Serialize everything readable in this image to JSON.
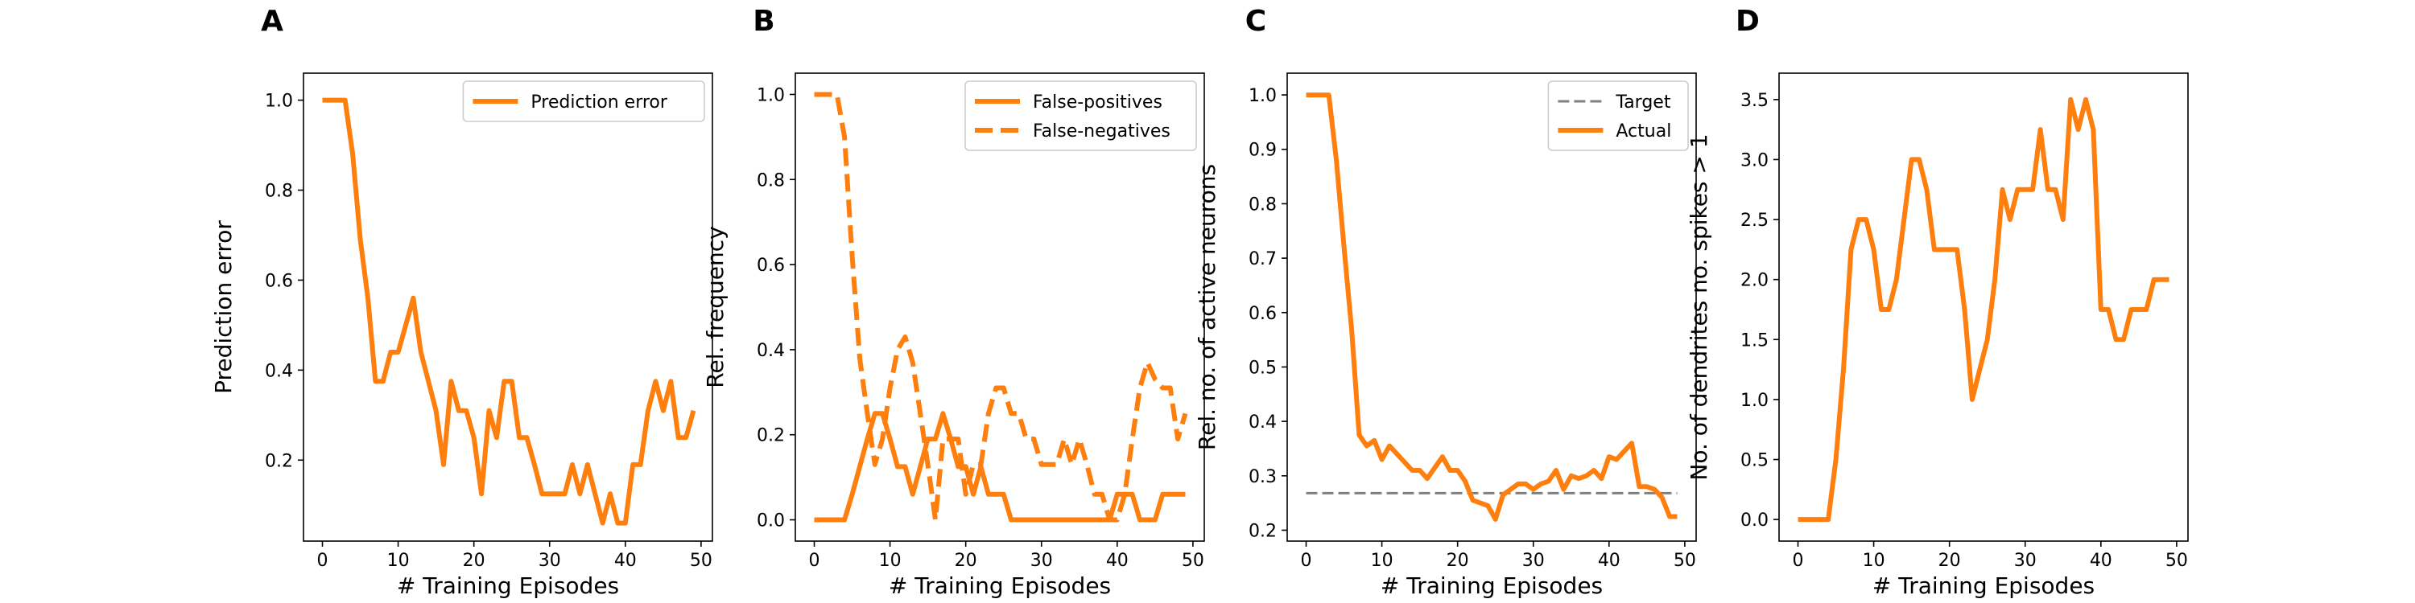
{
  "colors": {
    "series": "#ff7f0e",
    "target": "#808080",
    "axis": "#000000",
    "legend_frame": "#cccccc"
  },
  "chart_data": [
    {
      "panel": "A",
      "type": "line",
      "xlabel": "# Training Episodes",
      "ylabel": "Prediction error",
      "xlim": [
        -2.5,
        51.5
      ],
      "ylim": [
        0.02,
        1.06
      ],
      "xticks": [
        0,
        10,
        20,
        30,
        40,
        50
      ],
      "yticks": [
        0.2,
        0.4,
        0.6,
        0.8,
        1.0
      ],
      "ytick_labels": [
        "0.2",
        "0.4",
        "0.6",
        "0.8",
        "1.0"
      ],
      "legend_position": "top-right",
      "series": [
        {
          "name": "Prediction error",
          "style": "solid",
          "x": [
            0,
            1,
            2,
            3,
            4,
            5,
            6,
            7,
            8,
            9,
            10,
            11,
            12,
            13,
            14,
            15,
            16,
            17,
            18,
            19,
            20,
            21,
            22,
            23,
            24,
            25,
            26,
            27,
            28,
            29,
            30,
            31,
            32,
            33,
            34,
            35,
            36,
            37,
            38,
            39,
            40,
            41,
            42,
            43,
            44,
            45,
            46,
            47,
            48,
            49
          ],
          "y": [
            1.0,
            1.0,
            1.0,
            1.0,
            0.88,
            0.69,
            0.56,
            0.375,
            0.375,
            0.44,
            0.44,
            0.5,
            0.56,
            0.44,
            0.375,
            0.31,
            0.19,
            0.375,
            0.31,
            0.31,
            0.25,
            0.125,
            0.31,
            0.25,
            0.375,
            0.375,
            0.25,
            0.25,
            0.19,
            0.125,
            0.125,
            0.125,
            0.125,
            0.19,
            0.125,
            0.19,
            0.125,
            0.06,
            0.125,
            0.06,
            0.06,
            0.19,
            0.19,
            0.31,
            0.375,
            0.31,
            0.375,
            0.25,
            0.25,
            0.31
          ]
        }
      ]
    },
    {
      "panel": "B",
      "type": "line",
      "xlabel": "# Training Episodes",
      "ylabel": "Rel. frequency",
      "xlim": [
        -2.5,
        51.5
      ],
      "ylim": [
        -0.05,
        1.05
      ],
      "xticks": [
        0,
        10,
        20,
        30,
        40,
        50
      ],
      "yticks": [
        0.0,
        0.2,
        0.4,
        0.6,
        0.8,
        1.0
      ],
      "ytick_labels": [
        "0.0",
        "0.2",
        "0.4",
        "0.6",
        "0.8",
        "1.0"
      ],
      "legend_position": "top-right",
      "series": [
        {
          "name": "False-positives",
          "style": "solid",
          "x": [
            0,
            1,
            2,
            3,
            4,
            5,
            6,
            7,
            8,
            9,
            10,
            11,
            12,
            13,
            14,
            15,
            16,
            17,
            18,
            19,
            20,
            21,
            22,
            23,
            24,
            25,
            26,
            27,
            28,
            29,
            30,
            31,
            32,
            33,
            34,
            35,
            36,
            37,
            38,
            39,
            40,
            41,
            42,
            43,
            44,
            45,
            46,
            47,
            48,
            49
          ],
          "y": [
            0,
            0,
            0,
            0,
            0,
            0.06,
            0.125,
            0.19,
            0.25,
            0.25,
            0.19,
            0.125,
            0.125,
            0.06,
            0.125,
            0.19,
            0.19,
            0.25,
            0.19,
            0.125,
            0.125,
            0.06,
            0.125,
            0.06,
            0.06,
            0.06,
            0,
            0,
            0,
            0,
            0,
            0,
            0,
            0,
            0,
            0,
            0,
            0,
            0,
            0,
            0.06,
            0.06,
            0.06,
            0,
            0,
            0,
            0.06,
            0.06,
            0.06,
            0.06
          ]
        },
        {
          "name": "False-negatives",
          "style": "dashed",
          "x": [
            0,
            1,
            2,
            3,
            4,
            5,
            6,
            7,
            8,
            9,
            10,
            11,
            12,
            13,
            14,
            15,
            16,
            17,
            18,
            19,
            20,
            21,
            22,
            23,
            24,
            25,
            26,
            27,
            28,
            29,
            30,
            31,
            32,
            33,
            34,
            35,
            36,
            37,
            38,
            39,
            40,
            41,
            42,
            43,
            44,
            45,
            46,
            47,
            48,
            49
          ],
          "y": [
            1.0,
            1.0,
            1.0,
            1.0,
            0.9,
            0.62,
            0.38,
            0.25,
            0.13,
            0.19,
            0.31,
            0.4,
            0.43,
            0.37,
            0.25,
            0.13,
            0.0,
            0.19,
            0.19,
            0.19,
            0.06,
            0.13,
            0.13,
            0.25,
            0.31,
            0.31,
            0.25,
            0.25,
            0.19,
            0.19,
            0.13,
            0.13,
            0.13,
            0.19,
            0.13,
            0.19,
            0.13,
            0.06,
            0.06,
            0.0,
            0.0,
            0.06,
            0.19,
            0.31,
            0.37,
            0.33,
            0.31,
            0.31,
            0.19,
            0.25
          ]
        }
      ]
    },
    {
      "panel": "C",
      "type": "line",
      "xlabel": "# Training Episodes",
      "ylabel": "Rel. no. of active neurons",
      "xlim": [
        -2.5,
        51.5
      ],
      "ylim": [
        0.18,
        1.04
      ],
      "xticks": [
        0,
        10,
        20,
        30,
        40,
        50
      ],
      "yticks": [
        0.2,
        0.3,
        0.4,
        0.5,
        0.6,
        0.7,
        0.8,
        0.9,
        1.0
      ],
      "ytick_labels": [
        "0.2",
        "0.3",
        "0.4",
        "0.5",
        "0.6",
        "0.7",
        "0.8",
        "0.9",
        "1.0"
      ],
      "legend_position": "top-right",
      "series": [
        {
          "name": "Target",
          "style": "dashed",
          "x": [
            0,
            49
          ],
          "y": [
            0.268,
            0.268
          ]
        },
        {
          "name": "Actual",
          "style": "solid",
          "x": [
            0,
            1,
            2,
            3,
            4,
            5,
            6,
            7,
            8,
            9,
            10,
            11,
            12,
            13,
            14,
            15,
            16,
            17,
            18,
            19,
            20,
            21,
            22,
            23,
            24,
            25,
            26,
            27,
            28,
            29,
            30,
            31,
            32,
            33,
            34,
            35,
            36,
            37,
            38,
            39,
            40,
            41,
            42,
            43,
            44,
            45,
            46,
            47,
            48,
            49
          ],
          "y": [
            1.0,
            1.0,
            1.0,
            1.0,
            0.88,
            0.72,
            0.57,
            0.375,
            0.355,
            0.365,
            0.33,
            0.355,
            0.34,
            0.325,
            0.31,
            0.31,
            0.295,
            0.315,
            0.335,
            0.31,
            0.31,
            0.29,
            0.255,
            0.25,
            0.245,
            0.22,
            0.265,
            0.275,
            0.285,
            0.285,
            0.275,
            0.285,
            0.29,
            0.31,
            0.275,
            0.3,
            0.295,
            0.3,
            0.31,
            0.295,
            0.335,
            0.33,
            0.345,
            0.36,
            0.28,
            0.28,
            0.275,
            0.26,
            0.225,
            0.225
          ]
        }
      ]
    },
    {
      "panel": "D",
      "type": "line",
      "xlabel": "# Training Episodes",
      "ylabel": "No. of dendrites no. spikes > 1",
      "xlim": [
        -2.5,
        51.5
      ],
      "ylim": [
        -0.18,
        3.72
      ],
      "xticks": [
        0,
        10,
        20,
        30,
        40,
        50
      ],
      "yticks": [
        0.0,
        0.5,
        1.0,
        1.5,
        2.0,
        2.5,
        3.0,
        3.5
      ],
      "ytick_labels": [
        "0.0",
        "0.5",
        "1.0",
        "1.5",
        "2.0",
        "2.5",
        "3.0",
        "3.5"
      ],
      "series": [
        {
          "name": "",
          "style": "solid",
          "x": [
            0,
            1,
            2,
            3,
            4,
            5,
            6,
            7,
            8,
            9,
            10,
            11,
            12,
            13,
            14,
            15,
            16,
            17,
            18,
            19,
            20,
            21,
            22,
            23,
            24,
            25,
            26,
            27,
            28,
            29,
            30,
            31,
            32,
            33,
            34,
            35,
            36,
            37,
            38,
            39,
            40,
            41,
            42,
            43,
            44,
            45,
            46,
            47,
            48,
            49
          ],
          "y": [
            0,
            0,
            0,
            0,
            0,
            0.5,
            1.25,
            2.25,
            2.5,
            2.5,
            2.25,
            1.75,
            1.75,
            2.0,
            2.5,
            3.0,
            3.0,
            2.75,
            2.25,
            2.25,
            2.25,
            2.25,
            1.75,
            1.0,
            1.25,
            1.5,
            2.0,
            2.75,
            2.5,
            2.75,
            2.75,
            2.75,
            3.25,
            2.75,
            2.75,
            2.5,
            3.5,
            3.25,
            3.5,
            3.25,
            1.75,
            1.75,
            1.5,
            1.5,
            1.75,
            1.75,
            1.75,
            2.0,
            2.0,
            2.0
          ]
        }
      ]
    }
  ]
}
